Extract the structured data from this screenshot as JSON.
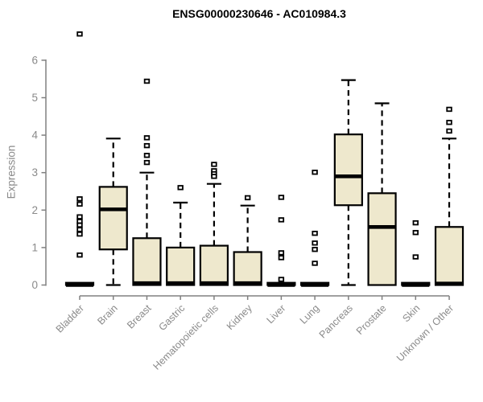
{
  "colors": {
    "box_fill": "#EEE8CD",
    "box_stroke": "#000000",
    "median": "#000000",
    "axis_line": "#808080",
    "tick_text": "#8a8a8a",
    "title_text": "#000000",
    "outlier_fill": "#ffffff"
  },
  "chart_data": {
    "type": "boxplot",
    "title": "ENSG00000230646 - AC010984.3",
    "xlabel": "",
    "ylabel": "Expression",
    "ylim": [
      0,
      6.9
    ],
    "yticks": [
      0,
      1,
      2,
      3,
      4,
      5,
      6
    ],
    "grid": false,
    "legend": "none",
    "categories": [
      "Bladder",
      "Brain",
      "Breast",
      "Gastric",
      "Hematopoietic cells",
      "Kidney",
      "Liver",
      "Lung",
      "Pancreas",
      "Prostate",
      "Skin",
      "Unknown / Other"
    ],
    "boxes": [
      {
        "category": "Bladder",
        "q1": 0,
        "median": 0,
        "q3": 0.06,
        "whisker_low": 0,
        "whisker_high": 0.06,
        "outliers": [
          6.7,
          2.3,
          2.16,
          1.82,
          1.7,
          1.6,
          1.48,
          1.36,
          0.8
        ]
      },
      {
        "category": "Brain",
        "q1": 0.95,
        "median": 2.02,
        "q3": 2.62,
        "whisker_low": 0,
        "whisker_high": 3.91,
        "outliers": []
      },
      {
        "category": "Breast",
        "q1": 0,
        "median": 0.05,
        "q3": 1.25,
        "whisker_low": 0,
        "whisker_high": 3.0,
        "outliers": [
          5.44,
          3.93,
          3.72,
          3.46,
          3.27
        ]
      },
      {
        "category": "Gastric",
        "q1": 0,
        "median": 0.05,
        "q3": 1.0,
        "whisker_low": 0,
        "whisker_high": 2.2,
        "outliers": [
          2.6
        ]
      },
      {
        "category": "Hematopoietic cells",
        "q1": 0,
        "median": 0.05,
        "q3": 1.05,
        "whisker_low": 0,
        "whisker_high": 2.7,
        "outliers": [
          3.22,
          3.05,
          2.97,
          2.9
        ]
      },
      {
        "category": "Kidney",
        "q1": 0,
        "median": 0.05,
        "q3": 0.88,
        "whisker_low": 0,
        "whisker_high": 2.12,
        "outliers": [
          2.33
        ]
      },
      {
        "category": "Liver",
        "q1": 0,
        "median": 0,
        "q3": 0.06,
        "whisker_low": 0,
        "whisker_high": 0.06,
        "outliers": [
          2.34,
          1.74,
          0.86,
          0.73,
          0.15
        ]
      },
      {
        "category": "Lung",
        "q1": 0,
        "median": 0,
        "q3": 0.06,
        "whisker_low": 0,
        "whisker_high": 0.06,
        "outliers": [
          3.01,
          1.38,
          1.12,
          0.95,
          0.58
        ]
      },
      {
        "category": "Pancreas",
        "q1": 2.13,
        "median": 2.9,
        "q3": 4.02,
        "whisker_low": 0,
        "whisker_high": 5.47,
        "outliers": []
      },
      {
        "category": "Prostate",
        "q1": 0,
        "median": 1.55,
        "q3": 2.45,
        "whisker_low": 0,
        "whisker_high": 4.85,
        "outliers": []
      },
      {
        "category": "Skin",
        "q1": 0,
        "median": 0,
        "q3": 0.06,
        "whisker_low": 0,
        "whisker_high": 0.06,
        "outliers": [
          1.66,
          1.4,
          0.75
        ]
      },
      {
        "category": "Unknown / Other",
        "q1": 0,
        "median": 0.04,
        "q3": 1.55,
        "whisker_low": 0,
        "whisker_high": 3.91,
        "outliers": [
          4.69,
          4.34,
          4.11
        ]
      }
    ]
  }
}
